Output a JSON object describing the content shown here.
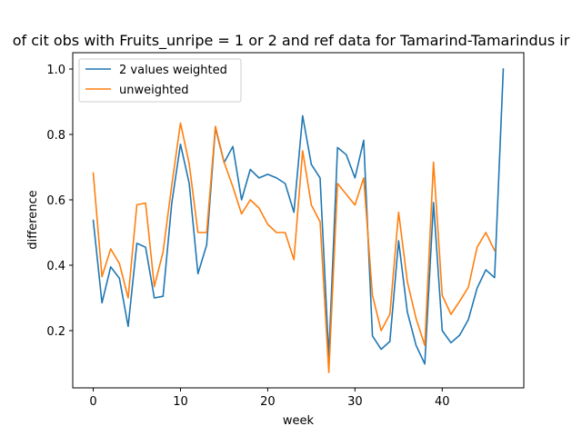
{
  "chart_data": {
    "type": "line",
    "title": "of cit obs with Fruits_unripe = 1 or 2 and ref data for Tamarind-Tamarindus ir",
    "xlabel": "week",
    "ylabel": "difference",
    "xlim": [
      -2.35,
      49.35
    ],
    "ylim": [
      0.025,
      1.05
    ],
    "xticks": [
      0,
      10,
      20,
      30,
      40
    ],
    "yticks": [
      0.2,
      0.4,
      0.6,
      0.8,
      1.0
    ],
    "xtick_labels": [
      "0",
      "10",
      "20",
      "30",
      "40"
    ],
    "ytick_labels": [
      "0.2",
      "0.4",
      "0.6",
      "0.8",
      "1.0"
    ],
    "grid": false,
    "legend_position": "top-left",
    "series": [
      {
        "name": "2 values weighted",
        "color": "#1f77b4",
        "x": [
          0,
          1,
          2,
          3,
          4,
          5,
          6,
          7,
          8,
          9,
          10,
          11,
          12,
          13,
          14,
          15,
          16,
          17,
          18,
          19,
          20,
          21,
          22,
          23,
          24,
          25,
          26,
          27,
          28,
          29,
          30,
          31,
          32,
          33,
          34,
          35,
          36,
          37,
          38,
          39,
          40,
          41,
          42,
          43,
          44,
          45,
          46,
          47
        ],
        "values": [
          0.537,
          0.285,
          0.395,
          0.36,
          0.213,
          0.467,
          0.455,
          0.3,
          0.305,
          0.59,
          0.77,
          0.65,
          0.374,
          0.462,
          0.82,
          0.714,
          0.763,
          0.6,
          0.693,
          0.667,
          0.678,
          0.667,
          0.65,
          0.562,
          0.857,
          0.708,
          0.667,
          0.12,
          0.76,
          0.738,
          0.667,
          0.782,
          0.184,
          0.143,
          0.167,
          0.475,
          0.257,
          0.155,
          0.098,
          0.592,
          0.2,
          0.163,
          0.186,
          0.234,
          0.33,
          0.386,
          0.362,
          1.0
        ]
      },
      {
        "name": "unweighted",
        "color": "#ff7f0e",
        "x": [
          0,
          1,
          2,
          3,
          4,
          5,
          6,
          7,
          8,
          9,
          10,
          11,
          12,
          13,
          14,
          15,
          16,
          17,
          18,
          19,
          20,
          21,
          22,
          23,
          24,
          25,
          26,
          27,
          28,
          29,
          30,
          31,
          32,
          33,
          34,
          35,
          36,
          37,
          38,
          39,
          40,
          41,
          42,
          43,
          44,
          45,
          46
        ],
        "values": [
          0.682,
          0.365,
          0.45,
          0.405,
          0.3,
          0.585,
          0.59,
          0.335,
          0.44,
          0.645,
          0.835,
          0.71,
          0.5,
          0.5,
          0.825,
          0.715,
          0.64,
          0.557,
          0.6,
          0.575,
          0.525,
          0.5,
          0.5,
          0.417,
          0.75,
          0.584,
          0.533,
          0.072,
          0.65,
          0.617,
          0.584,
          0.667,
          0.308,
          0.2,
          0.25,
          0.562,
          0.35,
          0.237,
          0.155,
          0.715,
          0.308,
          0.25,
          0.29,
          0.333,
          0.455,
          0.5,
          0.445
        ]
      }
    ]
  }
}
